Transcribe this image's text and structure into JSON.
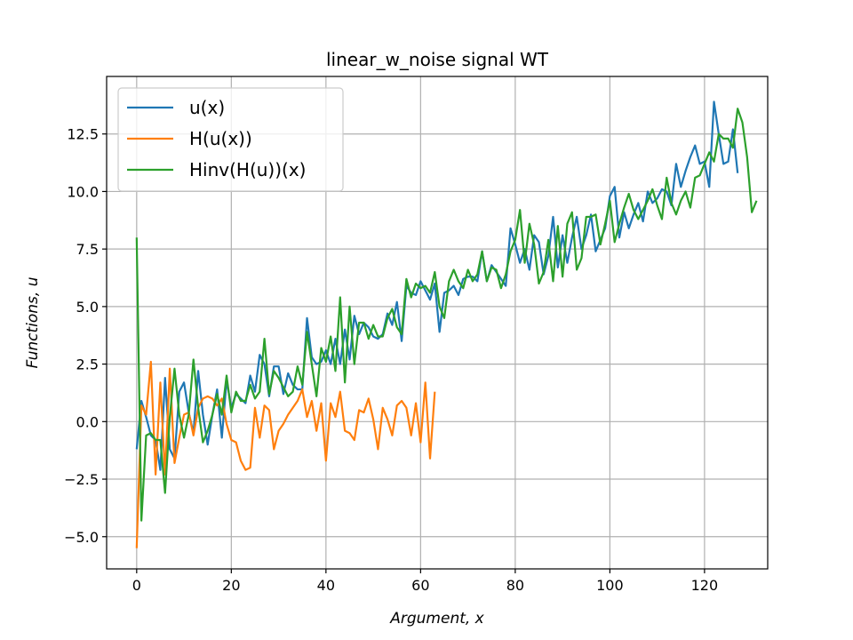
{
  "chart_data": {
    "type": "line",
    "title": "linear_w_noise signal WT",
    "xlabel": "Argument, x",
    "ylabel": "Functions, u",
    "xlim": [
      -6.35,
      133.35
    ],
    "ylim": [
      -6.4,
      15.0
    ],
    "xticks": [
      0,
      20,
      40,
      60,
      80,
      100,
      120
    ],
    "yticks": [
      -5.0,
      -2.5,
      0.0,
      2.5,
      5.0,
      7.5,
      10.0,
      12.5
    ],
    "xtick_labels": [
      "0",
      "20",
      "40",
      "60",
      "80",
      "100",
      "120"
    ],
    "ytick_labels": [
      "−5.0",
      "−2.5",
      "0.0",
      "2.5",
      "5.0",
      "7.5",
      "10.0",
      "12.5"
    ],
    "grid": true,
    "legend_position": "upper-left",
    "series": [
      {
        "name": "u(x)",
        "color": "#1f77b4",
        "x_start": 0,
        "values": [
          -1.2,
          0.9,
          0.2,
          -0.6,
          -0.8,
          -2.1,
          1.9,
          -1.2,
          -1.6,
          1.3,
          1.7,
          0.4,
          -0.5,
          2.2,
          0.3,
          -1.0,
          0.3,
          1.4,
          -0.7,
          1.8,
          0.6,
          1.2,
          1.0,
          0.8,
          2.0,
          1.3,
          2.9,
          2.5,
          1.1,
          2.4,
          2.4,
          1.2,
          2.1,
          1.6,
          1.4,
          1.4,
          4.5,
          2.8,
          2.5,
          2.6,
          3.1,
          2.5,
          3.6,
          2.5,
          4.0,
          2.7,
          4.6,
          3.8,
          4.3,
          4.1,
          3.7,
          3.6,
          3.8,
          4.7,
          4.2,
          5.2,
          3.5,
          5.9,
          5.6,
          5.5,
          6.1,
          5.7,
          5.3,
          6.0,
          3.9,
          5.6,
          5.7,
          5.9,
          5.5,
          6.2,
          6.3,
          6.3,
          6.1,
          7.4,
          6.1,
          6.8,
          6.5,
          6.2,
          5.9,
          8.4,
          7.7,
          6.9,
          7.5,
          6.6,
          8.1,
          7.8,
          6.4,
          7.2,
          8.9,
          6.7,
          8.1,
          6.9,
          8.0,
          8.9,
          7.5,
          8.1,
          9.0,
          7.4,
          7.9,
          8.4,
          9.8,
          10.2,
          8.0,
          9.1,
          8.4,
          9.0,
          9.5,
          8.7,
          10.0,
          9.5,
          9.7,
          10.1,
          10.0,
          9.4,
          11.2,
          10.2,
          10.9,
          11.5,
          12.0,
          11.2,
          11.3,
          10.2,
          13.9,
          12.5,
          11.2,
          11.3,
          12.7,
          10.8
        ]
      },
      {
        "name": "H(u(x))",
        "color": "#ff7f0e",
        "x_start": 0,
        "values": [
          -5.5,
          0.7,
          0.3,
          2.6,
          -2.3,
          1.7,
          -2.3,
          2.3,
          -1.8,
          -0.7,
          0.3,
          0.4,
          -0.6,
          0.6,
          1.0,
          1.1,
          1.0,
          0.7,
          1.0,
          -0.1,
          -0.8,
          -0.9,
          -1.7,
          -2.1,
          -2.0,
          0.6,
          -0.7,
          0.7,
          0.5,
          -1.2,
          -0.4,
          -0.1,
          0.3,
          0.6,
          0.9,
          1.4,
          0.2,
          0.9,
          -0.4,
          0.8,
          -1.7,
          0.8,
          0.2,
          1.3,
          -0.4,
          -0.5,
          -0.8,
          0.5,
          0.4,
          1.0,
          0.1,
          -1.2,
          0.6,
          0.1,
          -0.6,
          0.7,
          0.9,
          0.6,
          -0.6,
          0.8,
          -0.9,
          1.7,
          -1.6,
          1.3
        ]
      },
      {
        "name": "Hinv(H(u))(x)",
        "color": "#2ca02c",
        "x_start": 0,
        "values": [
          8.0,
          -4.3,
          -0.6,
          -0.5,
          -0.8,
          -0.8,
          -3.1,
          0.2,
          2.3,
          0.3,
          -0.7,
          0.3,
          2.7,
          0.6,
          -0.9,
          -0.4,
          0.3,
          1.2,
          0.3,
          2.0,
          0.4,
          1.3,
          0.9,
          0.9,
          1.6,
          1.0,
          1.3,
          3.6,
          1.2,
          2.2,
          1.9,
          1.5,
          1.1,
          1.3,
          2.4,
          1.6,
          3.9,
          2.5,
          1.1,
          3.2,
          2.6,
          3.7,
          2.2,
          5.4,
          1.7,
          5.0,
          2.5,
          4.3,
          4.3,
          3.6,
          4.2,
          3.7,
          3.7,
          4.5,
          4.9,
          4.1,
          3.8,
          6.2,
          5.4,
          6.0,
          5.8,
          5.9,
          5.6,
          6.5,
          5.0,
          4.5,
          6.1,
          6.6,
          6.1,
          5.8,
          6.6,
          6.1,
          6.4,
          7.4,
          6.1,
          6.7,
          6.6,
          5.8,
          6.4,
          7.4,
          7.9,
          9.2,
          6.9,
          8.6,
          7.7,
          6.0,
          6.5,
          7.9,
          6.1,
          8.5,
          6.3,
          8.6,
          9.1,
          6.6,
          7.1,
          8.9,
          8.9,
          9.0,
          7.7,
          8.6,
          9.6,
          7.8,
          8.6,
          9.3,
          9.9,
          9.2,
          8.8,
          9.2,
          9.6,
          10.1,
          9.4,
          8.8,
          10.6,
          9.5,
          9.0,
          9.6,
          10.0,
          9.3,
          10.6,
          10.7,
          11.2,
          11.7,
          11.3,
          12.5,
          12.3,
          12.3,
          11.9,
          13.6,
          13.0,
          11.5,
          9.1,
          9.6
        ]
      }
    ]
  }
}
